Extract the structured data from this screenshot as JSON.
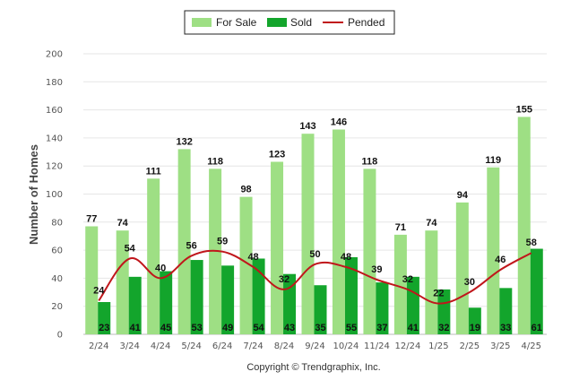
{
  "chart_data": {
    "type": "bar",
    "categories": [
      "2/24",
      "3/24",
      "4/24",
      "5/24",
      "6/24",
      "7/24",
      "8/24",
      "9/24",
      "10/24",
      "11/24",
      "12/24",
      "1/25",
      "2/25",
      "3/25",
      "4/25"
    ],
    "series": [
      {
        "name": "For Sale",
        "type": "bar",
        "color": "#9edf84",
        "values": [
          77,
          74,
          111,
          132,
          118,
          98,
          123,
          143,
          146,
          118,
          71,
          74,
          94,
          119,
          155
        ],
        "labels": [
          "77",
          "74",
          "111",
          "132",
          "118",
          "98",
          "123",
          "143",
          "146",
          "118",
          "71",
          "74",
          "94",
          "119",
          "155"
        ]
      },
      {
        "name": "Sold",
        "type": "bar",
        "color": "#13a52c",
        "values": [
          23,
          41,
          45,
          53,
          49,
          54,
          43,
          35,
          55,
          37,
          41,
          32,
          19,
          33,
          61
        ],
        "labels": [
          "23",
          "41",
          "45",
          "53",
          "49",
          "54",
          "43",
          "35",
          "55",
          "37",
          "41",
          "32",
          "19",
          "33",
          "61"
        ]
      },
      {
        "name": "Pended",
        "type": "line",
        "color": "#c0161b",
        "values": [
          24,
          54,
          40,
          56,
          59,
          48,
          32,
          50,
          48,
          39,
          32,
          22,
          30,
          46,
          58
        ],
        "labels": [
          "24",
          "54",
          "40",
          "56",
          "59",
          "48",
          "32",
          "50",
          "48",
          "39",
          "32",
          "22",
          "30",
          "46",
          "58"
        ]
      }
    ],
    "ylabel": "Number of Homes",
    "xlabel": "",
    "ylim": [
      0,
      200
    ],
    "yticks": [
      "0",
      "20",
      "40",
      "60",
      "80",
      "100",
      "120",
      "140",
      "160",
      "180",
      "200"
    ],
    "grid": true,
    "legend_position": "top-center"
  },
  "footer": "Copyright © Trendgraphix, Inc."
}
